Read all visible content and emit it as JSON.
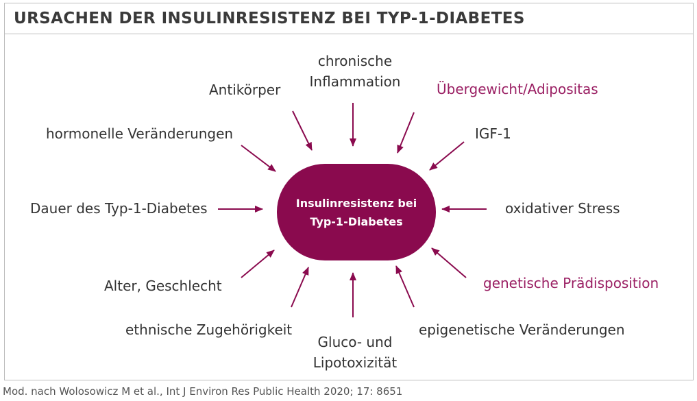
{
  "title": "URSACHEN DER INSULINRESISTENZ BEI TYP-1-DIABETES",
  "center": {
    "line1": "Insulinresistenz bei",
    "line2": "Typ-1-Diabetes"
  },
  "factors": {
    "antikoerper": "Antikörper",
    "inflammation_1": "chronische",
    "inflammation_2": "Inflammation",
    "uebergewicht": "Übergewicht/Adipositas",
    "hormonelle": "hormonelle Veränderungen",
    "igf1": "IGF-1",
    "dauer": "Dauer des Typ-1-Diabetes",
    "oxidativer": "oxidativer Stress",
    "alter": "Alter, Geschlecht",
    "genetische": "genetische Prädisposition",
    "ethnische": "ethnische Zugehörigkeit",
    "gluco_1": "Gluco- und",
    "gluco_2": "Lipotoxizität",
    "epigenetische": "epigenetische Veränderungen"
  },
  "credit": "Mod. nach Wolosowicz M et al., Int J Environ Res Public Health 2020; 17: 8651",
  "colors": {
    "accent": "#8a0a4e",
    "highlight_text": "#9a1f63",
    "text": "#333333",
    "border": "#bdbdbd"
  }
}
